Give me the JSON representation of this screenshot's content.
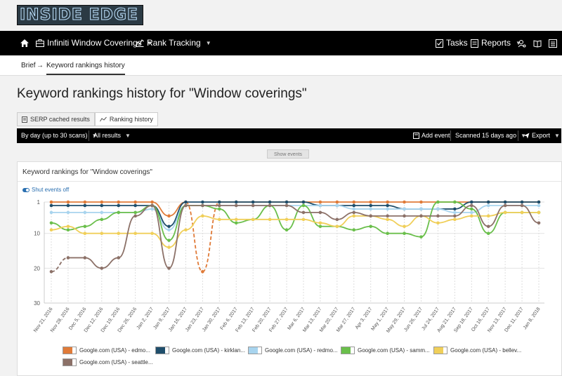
{
  "brand": {
    "logo_text": "INSIDE EDGE"
  },
  "nav": {
    "client": "Infiniti Window Coverings",
    "rank_tracking": "Rank Tracking",
    "tasks": "Tasks",
    "reports": "Reports"
  },
  "breadcrumb": {
    "root": "Brief",
    "arrow": "→",
    "current": "Keyword rankings history"
  },
  "page": {
    "title": "Keyword rankings history for \"Window coverings\""
  },
  "tabs": {
    "serp": "SERP cached results",
    "ranking": "Ranking history"
  },
  "toolbar": {
    "period": "By day (up to 30 scans)",
    "results": "All results",
    "add_event": "Add event",
    "scanned": "Scanned 15 days ago",
    "export": "Export"
  },
  "show_events": "Show events",
  "panel": {
    "title": "Keyword rankings for \"Window coverings\"",
    "shut_events": "Shut events off"
  },
  "legend": [
    {
      "label": "Google.com (USA) - edmo...",
      "color": "#e07b39"
    },
    {
      "label": "Google.com (USA) - kirklan...",
      "color": "#1f4e6b"
    },
    {
      "label": "Google.com (USA) - redmo...",
      "color": "#a8d4ee"
    },
    {
      "label": "Google.com (USA) - samm...",
      "color": "#6abf4b"
    },
    {
      "label": "Google.com (USA) - bellev...",
      "color": "#f0cf59"
    },
    {
      "label": "Google.com (USA) - seattle...",
      "color": "#8c7168"
    }
  ],
  "chart_data": {
    "type": "line",
    "title": "",
    "ylabel": "",
    "xlabel": "",
    "ylim": [
      30,
      1
    ],
    "yticks": [
      1,
      10,
      20,
      30
    ],
    "grid": "horizontal",
    "x_labels": [
      "Nov 21, 2016",
      "Nov 28, 2016",
      "Dec 5, 2016",
      "Dec 12, 2016",
      "Dec 19, 2016",
      "Dec 26, 2016",
      "Jan 2, 2017",
      "Jan 9, 2017",
      "Jan 16, 2017",
      "Jan 23, 2017",
      "Jan 30, 2017",
      "Feb 6, 2017",
      "Feb 13, 2017",
      "Feb 20, 2017",
      "Feb 27, 2017",
      "Mar 6, 2017",
      "Mar 13, 2017",
      "Mar 20, 2017",
      "Mar 27, 2017",
      "Apr 3, 2017",
      "May 1, 2017",
      "May 29, 2017",
      "Jun 26, 2017",
      "Jul 24, 2017",
      "Aug 21, 2017",
      "Sep 18, 2017",
      "Oct 16, 2017",
      "Nov 13, 2017",
      "Dec 11, 2017",
      "Jan 8, 2018"
    ],
    "scans": [
      0,
      1,
      2,
      3,
      4,
      5,
      6,
      7,
      8,
      9,
      10,
      11,
      12,
      13,
      14,
      15,
      16,
      17,
      18,
      19,
      20,
      21,
      22,
      23,
      24,
      25,
      26,
      27,
      28,
      29
    ],
    "series": [
      {
        "name": "Google.com (USA) - edmo...",
        "color": "#e07b39",
        "values": [
          1,
          1,
          1,
          1,
          1,
          1,
          1,
          5,
          1,
          21,
          1,
          1,
          1,
          1,
          1,
          1,
          1,
          1,
          1,
          1,
          1,
          1,
          1,
          1,
          1,
          1,
          1,
          1,
          1,
          1
        ],
        "dashed_segments": [
          [
            8,
            9
          ],
          [
            9,
            10
          ]
        ]
      },
      {
        "name": "Google.com (USA) - kirklan...",
        "color": "#1f4e6b",
        "values": [
          2,
          2,
          2,
          2,
          2,
          2,
          2,
          8,
          1,
          1,
          1,
          1,
          1,
          1,
          1,
          1,
          2,
          2,
          2,
          2,
          2,
          3,
          3,
          3,
          3,
          1,
          1,
          1,
          1,
          1
        ]
      },
      {
        "name": "Google.com (USA) - redmo...",
        "color": "#a8d4ee",
        "values": [
          4,
          4,
          4,
          4,
          4,
          4,
          3,
          9,
          2,
          2,
          2,
          2,
          2,
          2,
          2,
          2,
          2,
          2,
          3,
          3,
          3,
          3,
          3,
          3,
          4,
          4,
          2,
          2,
          2,
          2
        ]
      },
      {
        "name": "Google.com (USA) - samm...",
        "color": "#6abf4b",
        "values": [
          7,
          9,
          8,
          6,
          4,
          4,
          2,
          12,
          2,
          2,
          3,
          7,
          6,
          2,
          9,
          2,
          8,
          8,
          9,
          8,
          10,
          10,
          11,
          1,
          1,
          3,
          10,
          4,
          4,
          4
        ]
      },
      {
        "name": "Google.com (USA) - bellev...",
        "color": "#f0cf59",
        "values": [
          9,
          8,
          10,
          10,
          10,
          10,
          10,
          14,
          9,
          5,
          6,
          6,
          6,
          6,
          6,
          6,
          7,
          8,
          5,
          5,
          6,
          8,
          5,
          7,
          6,
          5,
          5,
          4,
          4,
          4
        ]
      },
      {
        "name": "Google.com (USA) - seattle...",
        "color": "#8c7168",
        "values": [
          21,
          17,
          17,
          20,
          17,
          5,
          2,
          20,
          2,
          2,
          2,
          2,
          2,
          2,
          2,
          4,
          4,
          6,
          4,
          5,
          5,
          5,
          5,
          5,
          5,
          2,
          8,
          2,
          2,
          7
        ],
        "dashed_segments": [
          [
            0,
            1
          ]
        ]
      }
    ]
  }
}
